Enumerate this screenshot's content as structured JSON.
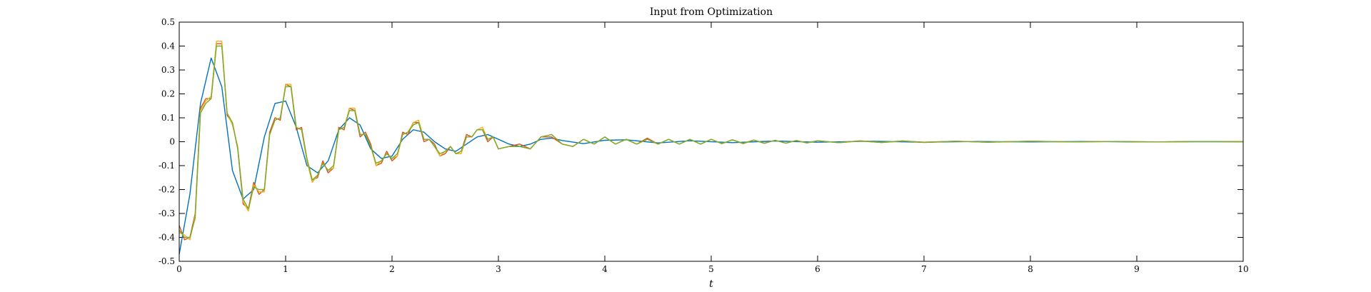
{
  "chart_data": {
    "type": "line",
    "title": "Input from Optimization",
    "xlabel": "t",
    "ylabel": "",
    "xlim": [
      0,
      10
    ],
    "ylim": [
      -0.5,
      0.5
    ],
    "xticks": [
      0,
      1,
      2,
      3,
      4,
      5,
      6,
      7,
      8,
      9,
      10
    ],
    "yticks": [
      -0.5,
      -0.4,
      -0.3,
      -0.2,
      -0.1,
      0,
      0.1,
      0.2,
      0.3,
      0.4,
      0.5
    ],
    "xtick_labels": [
      "0",
      "1",
      "2",
      "3",
      "4",
      "5",
      "6",
      "7",
      "8",
      "9",
      "10"
    ],
    "ytick_labels": [
      "-0.5",
      "-0.4",
      "-0.3",
      "-0.2",
      "-0.1",
      "0",
      "0.1",
      "0.2",
      "0.3",
      "0.4",
      "0.5"
    ],
    "grid": false,
    "legend": "none",
    "series": [
      {
        "color": "#0072BD",
        "x": [
          0,
          0.1,
          0.2,
          0.3,
          0.4,
          0.5,
          0.6,
          0.7,
          0.8,
          0.9,
          1.0,
          1.1,
          1.2,
          1.3,
          1.4,
          1.5,
          1.6,
          1.7,
          1.8,
          1.9,
          2.0,
          2.1,
          2.2,
          2.3,
          2.4,
          2.5,
          2.6,
          2.7,
          2.8,
          2.9,
          3.0,
          3.1,
          3.2,
          3.3,
          3.4,
          3.5,
          3.6,
          3.8,
          4.0,
          4.2,
          4.5,
          4.8,
          5.2,
          5.6,
          6.0,
          6.5,
          7.0,
          7.5,
          8.0,
          8.5,
          9.0,
          9.5,
          10.0
        ],
        "y": [
          -0.47,
          -0.22,
          0.16,
          0.35,
          0.23,
          -0.12,
          -0.24,
          -0.2,
          0.02,
          0.16,
          0.17,
          0.06,
          -0.1,
          -0.13,
          -0.08,
          0.05,
          0.1,
          0.07,
          -0.03,
          -0.07,
          -0.06,
          0.01,
          0.05,
          0.04,
          0.0,
          -0.03,
          -0.04,
          -0.01,
          0.02,
          0.03,
          0.01,
          -0.01,
          -0.02,
          -0.01,
          0.01,
          0.015,
          0.005,
          -0.008,
          0.006,
          0.008,
          -0.005,
          0.004,
          -0.004,
          0.003,
          -0.002,
          0.002,
          -0.002,
          0.001,
          -0.001,
          0.001,
          -0.001,
          0.0,
          0.0
        ]
      },
      {
        "color": "#D95319",
        "x": [
          0,
          0.05,
          0.1,
          0.15,
          0.2,
          0.25,
          0.3,
          0.35,
          0.4,
          0.45,
          0.5,
          0.55,
          0.6,
          0.65,
          0.7,
          0.75,
          0.8,
          0.85,
          0.9,
          0.95,
          1.0,
          1.05,
          1.1,
          1.15,
          1.2,
          1.25,
          1.3,
          1.35,
          1.4,
          1.45,
          1.5,
          1.55,
          1.6,
          1.65,
          1.7,
          1.75,
          1.8,
          1.85,
          1.9,
          1.95,
          2.0,
          2.05,
          2.1,
          2.15,
          2.2,
          2.25,
          2.3,
          2.35,
          2.4,
          2.45,
          2.5,
          2.55,
          2.6,
          2.65,
          2.7,
          2.75,
          2.8,
          2.85,
          2.9,
          2.95,
          3.0,
          3.1,
          3.2,
          3.3,
          3.4,
          3.5,
          3.6,
          3.7,
          3.8,
          3.9,
          4.0,
          4.1,
          4.2,
          4.3,
          4.4,
          4.5,
          4.6,
          4.7,
          4.8,
          4.9,
          5.0,
          5.1,
          5.2,
          5.3,
          5.4,
          5.5,
          5.6,
          5.7,
          5.8,
          5.9,
          6.0,
          6.2,
          6.4,
          6.6,
          6.8,
          7.0,
          7.3,
          7.6,
          8.0,
          8.4,
          8.8,
          9.2,
          9.6,
          10.0
        ],
        "y": [
          -0.35,
          -0.41,
          -0.4,
          -0.3,
          0.14,
          0.18,
          0.18,
          0.41,
          0.41,
          0.11,
          0.08,
          -0.03,
          -0.26,
          -0.28,
          -0.17,
          -0.22,
          -0.2,
          0.04,
          0.1,
          0.09,
          0.24,
          0.23,
          0.05,
          0.06,
          -0.07,
          -0.16,
          -0.15,
          -0.08,
          -0.13,
          -0.11,
          0.06,
          0.05,
          0.14,
          0.13,
          0.02,
          0.04,
          -0.01,
          -0.1,
          -0.09,
          -0.04,
          -0.08,
          -0.06,
          0.04,
          0.03,
          0.08,
          0.08,
          0.0,
          0.01,
          -0.01,
          -0.06,
          -0.05,
          -0.02,
          -0.05,
          -0.04,
          0.03,
          0.02,
          0.05,
          0.05,
          0.0,
          0.02,
          -0.03,
          -0.02,
          -0.01,
          -0.03,
          0.02,
          0.02,
          -0.01,
          -0.02,
          0.01,
          -0.01,
          0.02,
          -0.01,
          0.01,
          -0.01,
          0.015,
          -0.01,
          0.01,
          -0.01,
          0.01,
          -0.01,
          0.01,
          -0.008,
          0.008,
          -0.008,
          0.007,
          -0.007,
          0.006,
          -0.006,
          0.005,
          -0.005,
          0.004,
          -0.004,
          0.004,
          -0.003,
          0.003,
          -0.003,
          0.002,
          -0.002,
          0.002,
          -0.001,
          0.001,
          -0.001,
          0.001,
          0.0
        ]
      },
      {
        "color": "#EDB120",
        "x": [
          0,
          0.05,
          0.1,
          0.15,
          0.2,
          0.25,
          0.3,
          0.35,
          0.4,
          0.45,
          0.5,
          0.55,
          0.6,
          0.65,
          0.7,
          0.75,
          0.8,
          0.85,
          0.9,
          0.95,
          1.0,
          1.05,
          1.1,
          1.15,
          1.2,
          1.25,
          1.3,
          1.35,
          1.4,
          1.45,
          1.5,
          1.55,
          1.6,
          1.65,
          1.7,
          1.75,
          1.8,
          1.85,
          1.9,
          1.95,
          2.0,
          2.05,
          2.1,
          2.15,
          2.2,
          2.25,
          2.3,
          2.35,
          2.4,
          2.45,
          2.5,
          2.55,
          2.6,
          2.65,
          2.7,
          2.75,
          2.8,
          2.85,
          2.9,
          2.95,
          3.0,
          3.1,
          3.2,
          3.3,
          3.4,
          3.5,
          3.6,
          3.7,
          3.8,
          3.9,
          4.0,
          4.1,
          4.2,
          4.3,
          4.4,
          4.5,
          4.6,
          4.7,
          4.8,
          4.9,
          5.0,
          5.1,
          5.2,
          5.3,
          5.4,
          5.5,
          5.6,
          5.7,
          5.8,
          5.9,
          6.0,
          6.2,
          6.4,
          6.6,
          6.8,
          7.0,
          7.3,
          7.6,
          8.0,
          8.4,
          8.8,
          9.2,
          9.6,
          10.0
        ],
        "y": [
          -0.38,
          -0.39,
          -0.41,
          -0.31,
          0.13,
          0.17,
          0.19,
          0.42,
          0.42,
          0.12,
          0.07,
          -0.02,
          -0.25,
          -0.29,
          -0.18,
          -0.21,
          -0.21,
          0.03,
          0.09,
          0.1,
          0.24,
          0.24,
          0.06,
          0.05,
          -0.08,
          -0.17,
          -0.14,
          -0.09,
          -0.12,
          -0.11,
          0.05,
          0.06,
          0.14,
          0.14,
          0.03,
          0.03,
          -0.02,
          -0.1,
          -0.08,
          -0.05,
          -0.07,
          -0.06,
          0.03,
          0.04,
          0.08,
          0.09,
          0.01,
          0.01,
          -0.02,
          -0.06,
          -0.04,
          -0.02,
          -0.05,
          -0.05,
          0.02,
          0.02,
          0.05,
          0.06,
          0.01,
          0.02,
          -0.03,
          -0.02,
          -0.02,
          -0.03,
          0.02,
          0.03,
          -0.01,
          -0.02,
          0.01,
          -0.01,
          0.02,
          -0.01,
          0.01,
          -0.01,
          0.01,
          -0.01,
          0.01,
          -0.01,
          0.01,
          -0.01,
          0.01,
          -0.008,
          0.008,
          -0.007,
          0.007,
          -0.006,
          0.006,
          -0.006,
          0.005,
          -0.005,
          0.004,
          -0.004,
          0.003,
          -0.003,
          0.003,
          -0.002,
          0.002,
          -0.002,
          0.002,
          -0.001,
          0.001,
          -0.001,
          0.001,
          0.0
        ]
      },
      {
        "color": "#77AC30",
        "x": [
          0,
          0.05,
          0.1,
          0.15,
          0.2,
          0.25,
          0.3,
          0.35,
          0.4,
          0.45,
          0.5,
          0.55,
          0.6,
          0.65,
          0.7,
          0.75,
          0.8,
          0.85,
          0.9,
          0.95,
          1.0,
          1.05,
          1.1,
          1.15,
          1.2,
          1.25,
          1.3,
          1.35,
          1.4,
          1.45,
          1.5,
          1.55,
          1.6,
          1.65,
          1.7,
          1.75,
          1.8,
          1.85,
          1.9,
          1.95,
          2.0,
          2.05,
          2.1,
          2.15,
          2.2,
          2.25,
          2.3,
          2.35,
          2.4,
          2.45,
          2.5,
          2.55,
          2.6,
          2.65,
          2.7,
          2.75,
          2.8,
          2.85,
          2.9,
          2.95,
          3.0,
          3.1,
          3.2,
          3.3,
          3.4,
          3.5,
          3.6,
          3.7,
          3.8,
          3.9,
          4.0,
          4.1,
          4.2,
          4.3,
          4.4,
          4.5,
          4.6,
          4.7,
          4.8,
          4.9,
          5.0,
          5.1,
          5.2,
          5.3,
          5.4,
          5.5,
          5.6,
          5.7,
          5.8,
          5.9,
          6.0,
          6.2,
          6.4,
          6.6,
          6.8,
          7.0,
          7.3,
          7.6,
          8.0,
          8.4,
          8.8,
          9.2,
          9.6,
          10.0
        ],
        "y": [
          -0.37,
          -0.4,
          -0.4,
          -0.32,
          0.12,
          0.16,
          0.18,
          0.4,
          0.4,
          0.12,
          0.08,
          -0.03,
          -0.24,
          -0.28,
          -0.19,
          -0.2,
          -0.2,
          0.03,
          0.09,
          0.1,
          0.23,
          0.23,
          0.06,
          0.05,
          -0.07,
          -0.16,
          -0.14,
          -0.09,
          -0.12,
          -0.1,
          0.05,
          0.06,
          0.13,
          0.13,
          0.03,
          0.03,
          -0.02,
          -0.09,
          -0.08,
          -0.05,
          -0.07,
          -0.05,
          0.03,
          0.04,
          0.07,
          0.08,
          0.01,
          0.01,
          -0.02,
          -0.05,
          -0.04,
          -0.02,
          -0.05,
          -0.04,
          0.02,
          0.02,
          0.05,
          0.05,
          0.01,
          0.02,
          -0.03,
          -0.02,
          -0.02,
          -0.03,
          0.02,
          0.03,
          -0.01,
          -0.02,
          0.01,
          -0.01,
          0.02,
          -0.01,
          0.01,
          -0.01,
          0.01,
          -0.01,
          0.01,
          -0.01,
          0.01,
          -0.01,
          0.01,
          -0.008,
          0.008,
          -0.007,
          0.007,
          -0.006,
          0.006,
          -0.006,
          0.005,
          -0.005,
          0.004,
          -0.004,
          0.003,
          -0.003,
          0.003,
          -0.002,
          0.002,
          -0.002,
          0.002,
          -0.001,
          0.001,
          -0.001,
          0.001,
          0.0
        ]
      }
    ]
  }
}
